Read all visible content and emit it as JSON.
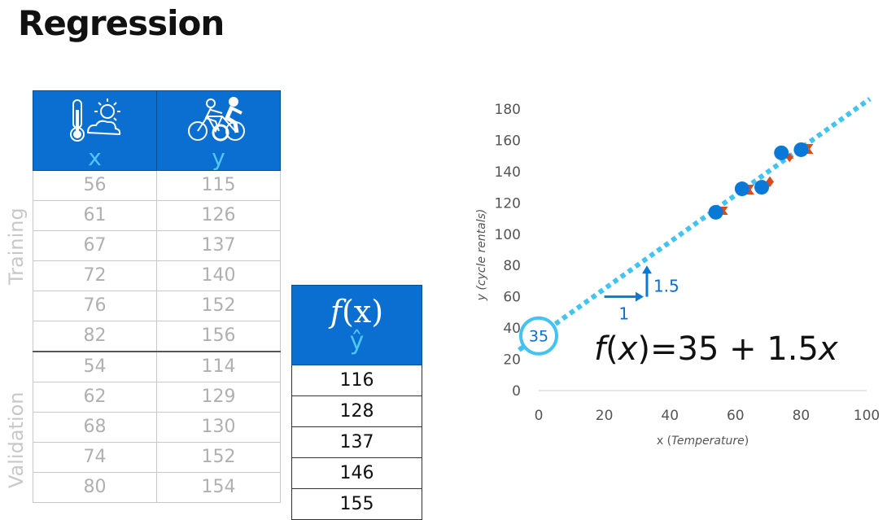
{
  "title": "Regression",
  "table": {
    "headers": {
      "x": "x",
      "y": "y",
      "x_icon": "thermometer-cloud-icon",
      "y_icon": "cyclist-icon"
    },
    "training_label": "Training",
    "validation_label": "Validation",
    "training_rows": [
      [
        "56",
        "115"
      ],
      [
        "61",
        "126"
      ],
      [
        "67",
        "137"
      ],
      [
        "72",
        "140"
      ],
      [
        "76",
        "152"
      ],
      [
        "82",
        "156"
      ]
    ],
    "validation_rows": [
      [
        "54",
        "114"
      ],
      [
        "62",
        "129"
      ],
      [
        "68",
        "130"
      ],
      [
        "74",
        "152"
      ],
      [
        "80",
        "154"
      ]
    ]
  },
  "prediction": {
    "header_f": "f",
    "header_x": "(x)",
    "header_yhat": "ŷ",
    "values": [
      "116",
      "128",
      "137",
      "146",
      "155"
    ]
  },
  "colors": {
    "header_blue": "#0a6fd1",
    "accent_cyan": "#4fc6f5",
    "point_blue": "#0a78d7",
    "error_red": "#d94a1e"
  },
  "chart_data": {
    "type": "scatter",
    "xlabel_prefix": "x (",
    "xlabel_italic": "Temperature",
    "xlabel_suffix": ")",
    "ylabel": "y (cycle rentals)",
    "xlim": [
      0,
      100
    ],
    "ylim": [
      0,
      180
    ],
    "xticks": [
      0,
      20,
      40,
      60,
      80,
      100
    ],
    "yticks": [
      0,
      20,
      40,
      60,
      80,
      100,
      120,
      140,
      160,
      180
    ],
    "points": [
      {
        "x": 54,
        "y": 114
      },
      {
        "x": 62,
        "y": 129
      },
      {
        "x": 68,
        "y": 130
      },
      {
        "x": 74,
        "y": 152
      },
      {
        "x": 80,
        "y": 154
      }
    ],
    "regression_line": {
      "intercept": 35,
      "slope": 1.5
    },
    "intercept_label": "35",
    "run_label": "1",
    "rise_label": "1.5",
    "equation": {
      "f": "f",
      "open": "(",
      "x": "x",
      "rest": ")=35 + 1.5",
      "x2": "x"
    }
  }
}
